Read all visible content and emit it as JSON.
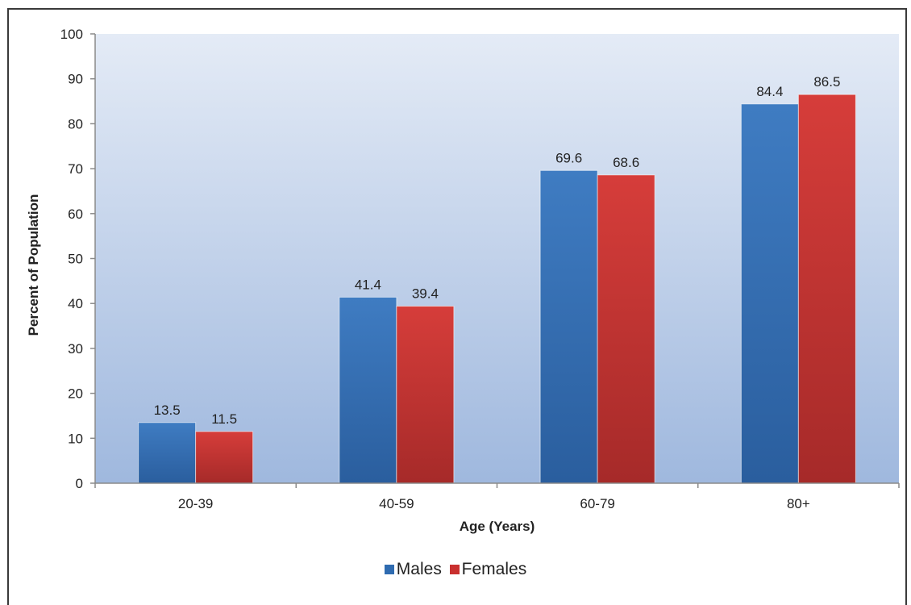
{
  "colors": {
    "plot_top": "#e4ebf6",
    "plot_bottom": "#9fb8de",
    "males": "#2f6bb0",
    "females": "#c9302f",
    "axis": "#8a8a8a",
    "text": "#222222"
  },
  "chart_data": {
    "type": "bar",
    "categories": [
      "20-39",
      "40-59",
      "60-79",
      "80+"
    ],
    "series": [
      {
        "name": "Males",
        "values": [
          13.5,
          41.4,
          69.6,
          84.4
        ],
        "color": "#2f6bb0"
      },
      {
        "name": "Females",
        "values": [
          11.5,
          39.4,
          68.6,
          86.5
        ],
        "color": "#c9302f"
      }
    ],
    "data_labels": [
      [
        "13.5",
        "41.4",
        "69.6",
        "84.4"
      ],
      [
        "11.5",
        "39.4",
        "68.6",
        "86.5"
      ]
    ],
    "title": "",
    "xlabel": "Age (Years)",
    "ylabel": "Percent of Population",
    "ylim": [
      0,
      100
    ],
    "yticks": [
      0,
      10,
      20,
      30,
      40,
      50,
      60,
      70,
      80,
      90,
      100
    ],
    "grid": false,
    "legend": {
      "position": "bottom",
      "entries": [
        "Males",
        "Females"
      ]
    }
  }
}
